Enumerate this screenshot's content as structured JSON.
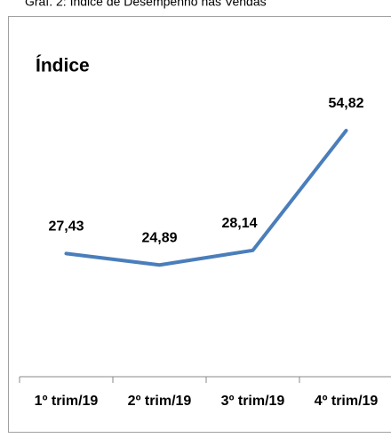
{
  "caption": "Graf. 2:     Índice de Desempenho nas Vendas",
  "chart_data": {
    "type": "line",
    "title": "Índice",
    "categories": [
      "1º trim/19",
      "2º trim/19",
      "3º trim/19",
      "4º trim/19"
    ],
    "values": [
      27.43,
      24.89,
      28.14,
      54.82
    ],
    "value_labels": [
      "27,43",
      "24,89",
      "28,14",
      "54,82"
    ],
    "color": "#4a7ebb",
    "ylim": [
      0,
      75
    ]
  }
}
